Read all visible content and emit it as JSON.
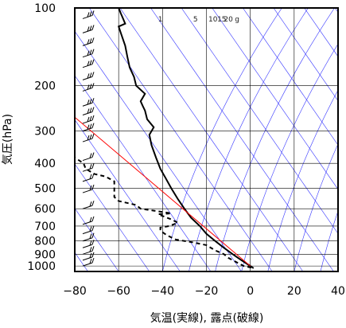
{
  "chart_data": {
    "type": "line",
    "xlabel": "気温(実線), 露点(破線)",
    "ylabel": "気圧(hPa)",
    "xlim": [
      -80,
      40
    ],
    "ylim": [
      1050,
      100
    ],
    "y_scale": "log",
    "grid": true,
    "x_ticks": [
      "−80",
      "−60",
      "−40",
      "−20",
      "0",
      "20",
      "40"
    ],
    "y_ticks": [
      {
        "p": 100,
        "label": "100"
      },
      {
        "p": 200,
        "label": "200"
      },
      {
        "p": 300,
        "label": "300"
      },
      {
        "p": 400,
        "label": "400"
      },
      {
        "p": 500,
        "label": "500"
      },
      {
        "p": 600,
        "label": "600"
      },
      {
        "p": 700,
        "label": "700"
      },
      {
        "p": 800,
        "label": "800"
      },
      {
        "p": 900,
        "label": "900"
      },
      {
        "p": 1000,
        "label": "1000"
      }
    ],
    "mixing_ratio_labels": [
      "1",
      "5",
      "10",
      "15",
      "20",
      "g"
    ],
    "colors": {
      "temperature": "#000000",
      "dewpoint": "#000000",
      "red_reference": "#ff0000",
      "guide_lines": "#3333ff",
      "grid": "#000000"
    },
    "series": [
      {
        "role": "temperature",
        "style": "solid",
        "points": [
          [
            1.5,
            1020
          ],
          [
            0,
            1000
          ],
          [
            -4,
            950
          ],
          [
            -8,
            900
          ],
          [
            -12,
            850
          ],
          [
            -16,
            800
          ],
          [
            -20,
            750
          ],
          [
            -23,
            700
          ],
          [
            -27,
            650
          ],
          [
            -30,
            600
          ],
          [
            -33,
            550
          ],
          [
            -36,
            500
          ],
          [
            -39,
            450
          ],
          [
            -41,
            420
          ],
          [
            -43,
            380
          ],
          [
            -45,
            340
          ],
          [
            -46,
            310
          ],
          [
            -44,
            290
          ],
          [
            -47,
            270
          ],
          [
            -48,
            250
          ],
          [
            -49,
            240
          ],
          [
            -50,
            230
          ],
          [
            -48,
            215
          ],
          [
            -52,
            200
          ],
          [
            -53,
            185
          ],
          [
            -55,
            170
          ],
          [
            -56,
            155
          ],
          [
            -57,
            140
          ],
          [
            -59,
            125
          ],
          [
            -60,
            118
          ],
          [
            -57,
            115
          ],
          [
            -58,
            110
          ],
          [
            -59,
            105
          ],
          [
            -60,
            100
          ]
        ]
      },
      {
        "role": "dewpoint",
        "style": "dashed",
        "points": [
          [
            0.5,
            1015
          ],
          [
            -3,
            1000
          ],
          [
            -6,
            970
          ],
          [
            -10,
            930
          ],
          [
            -12,
            900
          ],
          [
            -16,
            870
          ],
          [
            -20,
            830
          ],
          [
            -26,
            810
          ],
          [
            -34,
            790
          ],
          [
            -38,
            760
          ],
          [
            -41,
            730
          ],
          [
            -41,
            710
          ],
          [
            -37,
            700
          ],
          [
            -33,
            680
          ],
          [
            -36,
            660
          ],
          [
            -42,
            630
          ],
          [
            -36,
            625
          ],
          [
            -44,
            610
          ],
          [
            -50,
            600
          ],
          [
            -52,
            580
          ],
          [
            -60,
            560
          ],
          [
            -62,
            540
          ],
          [
            -62,
            520
          ],
          [
            -62,
            480
          ],
          [
            -62,
            470
          ],
          [
            -66,
            450
          ],
          [
            -71,
            440
          ],
          [
            -75,
            420
          ],
          [
            -76,
            400
          ],
          [
            -80,
            380
          ]
        ]
      },
      {
        "role": "red_reference",
        "style": "solid",
        "points": [
          [
            0,
            1000
          ],
          [
            -80,
            265
          ]
        ]
      }
    ],
    "wind_barbs_present": true
  }
}
